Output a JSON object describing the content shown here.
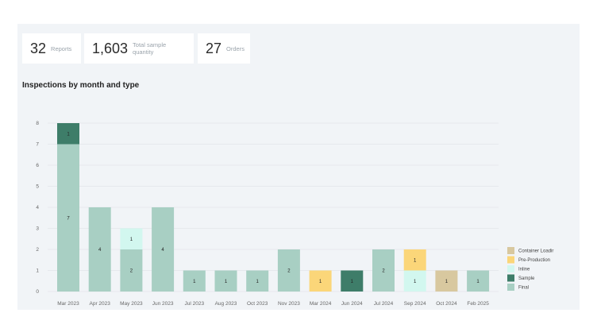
{
  "stats": [
    {
      "value": "32",
      "label": "Reports"
    },
    {
      "value": "1,603",
      "label": "Total sample quantity"
    },
    {
      "value": "27",
      "label": "Orders"
    }
  ],
  "colors": {
    "Final": "#a8cfc3",
    "Sample": "#3e7d69",
    "Inline": "#d2f7ef",
    "Pre-Production": "#fbd679",
    "Container Loading": "#d8c89f"
  },
  "chart_data": {
    "type": "bar",
    "stacked": true,
    "title": "Inspections by month and type",
    "xlabel": "",
    "ylabel": "",
    "ylim": [
      0,
      8
    ],
    "yticks": [
      0,
      1,
      2,
      3,
      4,
      5,
      6,
      7,
      8
    ],
    "grid": true,
    "legend_position": "right",
    "categories": [
      "Mar 2023",
      "Apr 2023",
      "May 2023",
      "Jun 2023",
      "Jul 2023",
      "Aug 2023",
      "Oct 2023",
      "Nov 2023",
      "Mar 2024",
      "Jun 2024",
      "Jul 2024",
      "Sep 2024",
      "Oct 2024",
      "Feb 2025"
    ],
    "series": [
      {
        "name": "Final",
        "values": [
          7,
          4,
          2,
          4,
          1,
          1,
          1,
          2,
          0,
          0,
          2,
          0,
          0,
          1
        ]
      },
      {
        "name": "Sample",
        "values": [
          1,
          0,
          0,
          0,
          0,
          0,
          0,
          0,
          0,
          1,
          0,
          0,
          0,
          0
        ]
      },
      {
        "name": "Inline",
        "values": [
          0,
          0,
          1,
          0,
          0,
          0,
          0,
          0,
          0,
          0,
          0,
          1,
          0,
          0
        ]
      },
      {
        "name": "Pre-Production",
        "values": [
          0,
          0,
          0,
          0,
          0,
          0,
          0,
          0,
          1,
          0,
          0,
          1,
          0,
          0
        ]
      },
      {
        "name": "Container Loading",
        "values": [
          0,
          0,
          0,
          0,
          0,
          0,
          0,
          0,
          0,
          0,
          0,
          0,
          1,
          0
        ]
      }
    ],
    "legend": [
      "Container Loadir",
      "Pre-Production",
      "Inline",
      "Sample",
      "Final"
    ]
  }
}
